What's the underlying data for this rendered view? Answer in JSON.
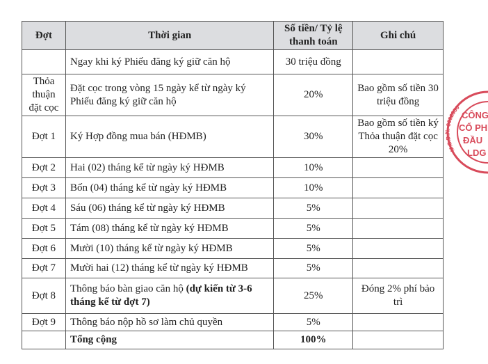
{
  "table": {
    "headers": [
      "Đợt",
      "Thời gian",
      "Số tiền/ Tỷ lệ thanh toán",
      "Ghi chú"
    ],
    "rows": [
      {
        "dot": "",
        "time": "Ngay khi ký Phiếu đăng ký giữ căn hộ",
        "amount": "30 triệu đồng",
        "note": ""
      },
      {
        "dot": "Thỏa thuận đặt cọc",
        "time": "Đặt cọc trong vòng 15 ngày kể từ ngày ký Phiếu đăng ký giữ căn hộ",
        "amount": "20%",
        "note": "Bao gồm số tiền 30 triệu đồng"
      },
      {
        "dot": "Đợt 1",
        "time": "Ký Hợp đồng mua bán (HĐMB)",
        "amount": "30%",
        "note": "Bao gồm số tiền ký Thỏa thuận đặt cọc 20%"
      },
      {
        "dot": "Đợt 2",
        "time": "Hai (02) tháng kể từ ngày ký HĐMB",
        "amount": "10%",
        "note": ""
      },
      {
        "dot": "Đợt 3",
        "time": "Bốn (04) tháng kể từ ngày ký HĐMB",
        "amount": "10%",
        "note": ""
      },
      {
        "dot": "Đợt 4",
        "time": "Sáu (06) tháng kể từ ngày ký HĐMB",
        "amount": "5%",
        "note": ""
      },
      {
        "dot": "Đợt 5",
        "time": "Tám (08) tháng kể từ ngày ký HĐMB",
        "amount": "5%",
        "note": ""
      },
      {
        "dot": "Đợt 6",
        "time": "Mười (10) tháng kể từ ngày ký HĐMB",
        "amount": "5%",
        "note": ""
      },
      {
        "dot": "Đợt 7",
        "time": "Mười hai (12) tháng kể từ ngày ký HĐMB",
        "amount": "5%",
        "note": ""
      },
      {
        "dot": "Đợt 8",
        "time": "Thông báo bàn giao căn hộ ",
        "time_bold": "(dự kiến từ 3-6 tháng kể từ đợt 7)",
        "amount": "25%",
        "note": "Đóng 2% phí bảo trì"
      },
      {
        "dot": "Đợt 9",
        "time": "Thông báo nộp hồ sơ làm chủ quyền",
        "amount": "5%",
        "note": ""
      }
    ],
    "total": {
      "label": "Tổng cộng",
      "amount": "100%"
    }
  },
  "stamp": {
    "lines": [
      "CÔNG",
      "CỔ PH",
      "ĐẦU",
      "LDG"
    ],
    "ring": "M.S.D.N: 3602356",
    "color": "#d84a5a"
  }
}
